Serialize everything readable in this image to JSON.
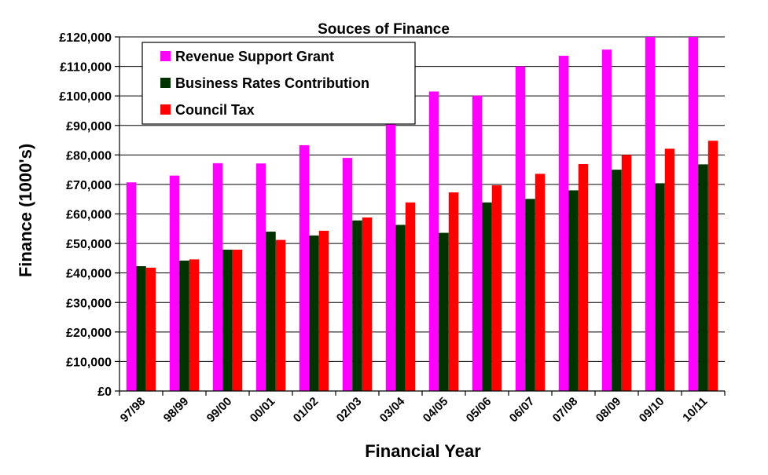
{
  "chart_data": {
    "type": "bar",
    "title": "Souces of Finance",
    "xlabel": "Financial Year",
    "ylabel": "Finance (1000's)",
    "ylim": [
      0,
      120000
    ],
    "yticks": [
      0,
      10000,
      20000,
      30000,
      40000,
      50000,
      60000,
      70000,
      80000,
      90000,
      100000,
      110000,
      120000
    ],
    "ytick_labels": [
      "£0",
      "£10,000",
      "£20,000",
      "£30,000",
      "£40,000",
      "£50,000",
      "£60,000",
      "£70,000",
      "£80,000",
      "£90,000",
      "£100,000",
      "£110,000",
      "£120,000"
    ],
    "categories": [
      "97/98",
      "98/99",
      "99/00",
      "00/01",
      "01/02",
      "02/03",
      "03/04",
      "04/05",
      "05/06",
      "06/07",
      "07/08",
      "08/09",
      "09/10",
      "10/11"
    ],
    "series": [
      {
        "name": "Revenue Support Grant",
        "color": "#ff00ff",
        "values": [
          70700,
          73000,
          77200,
          77100,
          83300,
          79000,
          90400,
          101500,
          100100,
          110000,
          113600,
          115700,
          120700,
          120700
        ]
      },
      {
        "name": "Business Rates Contribution",
        "color": "#003300",
        "values": [
          42300,
          44200,
          47900,
          54000,
          52700,
          57800,
          56300,
          53600,
          63900,
          65100,
          68000,
          75000,
          70400,
          76800
        ]
      },
      {
        "name": "Council Tax",
        "color": "#ff0000",
        "values": [
          41800,
          44600,
          47900,
          51200,
          54300,
          58800,
          63900,
          67300,
          69700,
          73600,
          76900,
          80000,
          82100,
          84800
        ]
      }
    ],
    "legend_position": "top-left",
    "grid": true
  }
}
